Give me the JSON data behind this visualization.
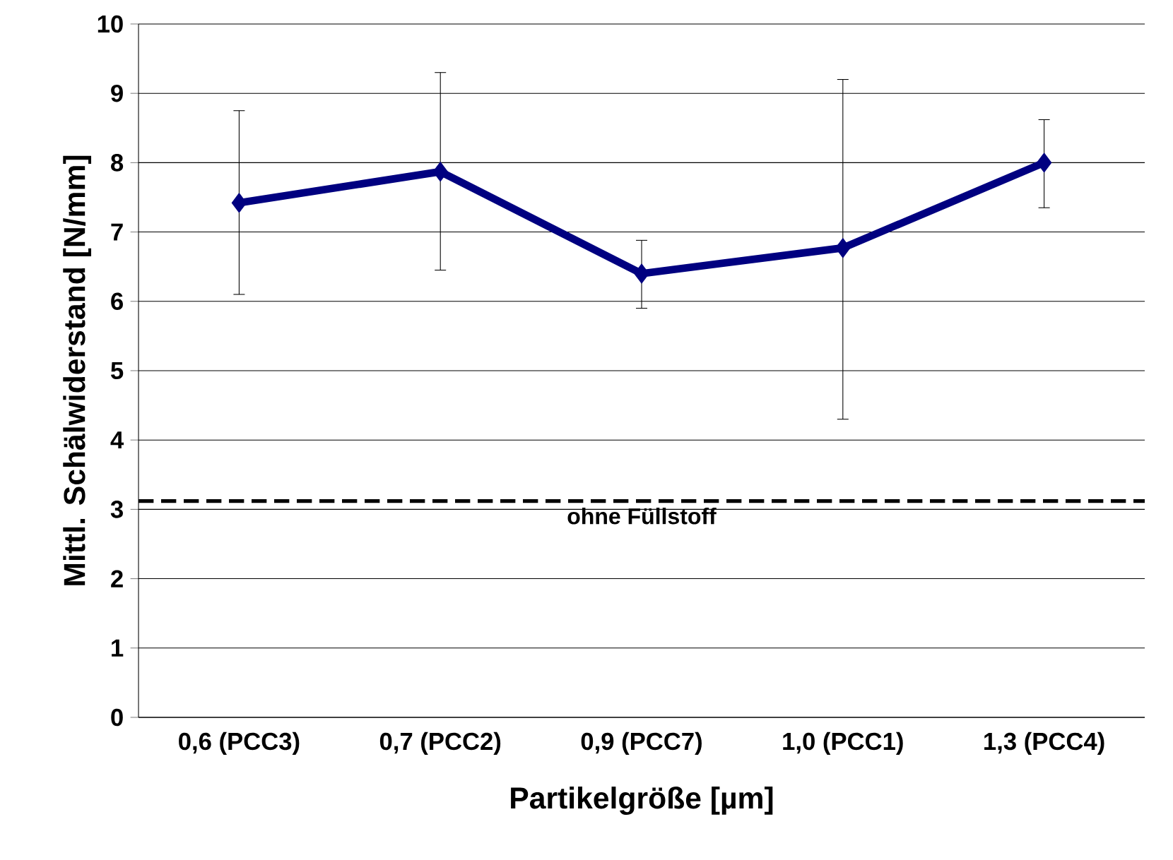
{
  "chart_data": {
    "type": "line",
    "xlabel": "Partikelgröße [µm]",
    "ylabel": "Mittl. Schälwiderstand [N/mm]",
    "categories": [
      "0,6 (PCC3)",
      "0,7 (PCC2)",
      "0,9 (PCC7)",
      "1,0 (PCC1)",
      "1,3 (PCC4)"
    ],
    "series": [
      {
        "color": "#000080",
        "values": [
          7.42,
          7.87,
          6.4,
          6.77,
          8.0
        ],
        "errors": [
          [
            6.1,
            8.75
          ],
          [
            6.45,
            9.3
          ],
          [
            5.9,
            6.88
          ],
          [
            4.3,
            9.2
          ],
          [
            7.35,
            8.62
          ]
        ]
      }
    ],
    "ylim": [
      0,
      10
    ],
    "yticks": [
      0,
      1,
      2,
      3,
      4,
      5,
      6,
      7,
      8,
      9,
      10
    ],
    "grid": "y",
    "marker": "diamond",
    "line_style": "solid",
    "ref_lines": [
      {
        "axis": "y",
        "value": 3.12,
        "label": "ohne Füllstoff",
        "color": "#000000",
        "line_style": "dashed"
      }
    ]
  }
}
